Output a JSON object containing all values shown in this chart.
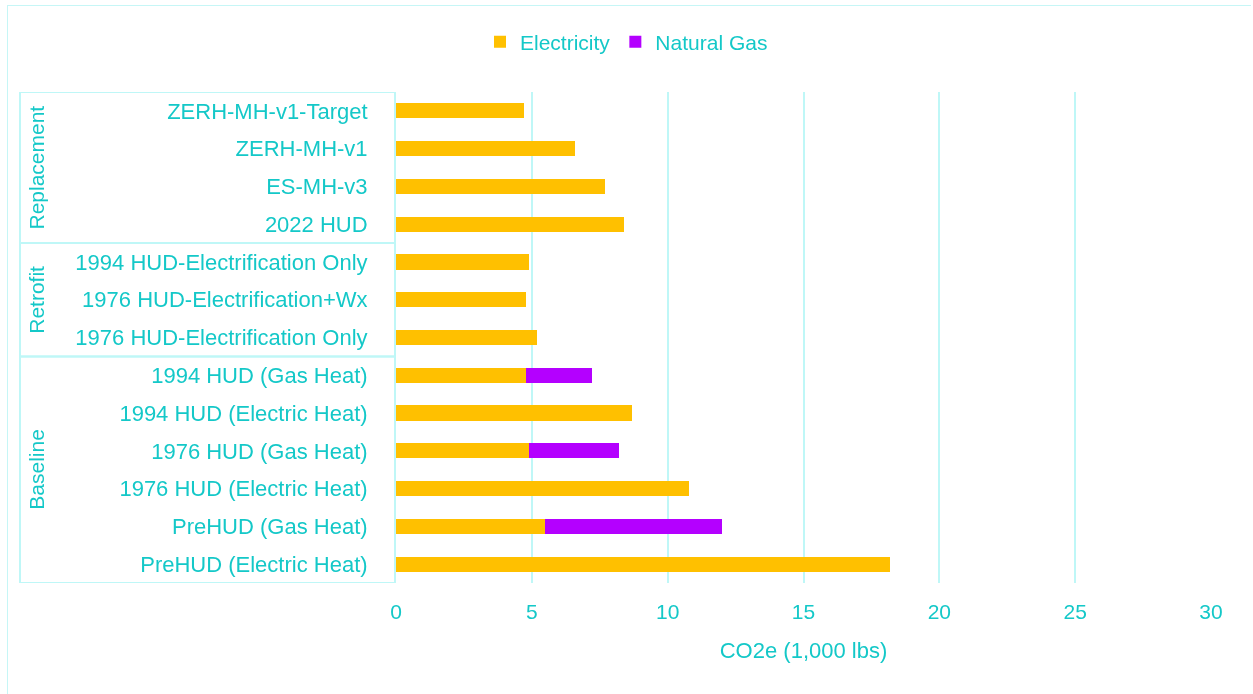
{
  "chart_data": {
    "type": "bar",
    "orientation": "horizontal",
    "stacked": true,
    "categories": [
      "ZERH-MH-v1-Target",
      "ZERH-MH-v1",
      "ES-MH-v3",
      "2022 HUD",
      "1994 HUD-Electrification Only",
      "1976 HUD-Electrification+Wx",
      "1976 HUD-Electrification Only",
      "1994 HUD (Gas Heat)",
      "1994 HUD (Electric Heat)",
      "1976 HUD (Gas Heat)",
      "1976 HUD (Electric Heat)",
      "PreHUD (Gas Heat)",
      "PreHUD (Electric Heat)"
    ],
    "series": [
      {
        "name": "Electricity",
        "color": "#ffc000",
        "values": [
          4.7,
          6.6,
          7.7,
          8.4,
          4.9,
          4.8,
          5.2,
          4.8,
          8.7,
          4.9,
          10.8,
          5.5,
          18.2
        ]
      },
      {
        "name": "Natural Gas",
        "color": "#b400ff",
        "values": [
          null,
          null,
          null,
          null,
          null,
          null,
          null,
          2.4,
          null,
          3.3,
          null,
          6.5,
          null
        ]
      }
    ],
    "xlabel": "CO2e (1,000 lbs)",
    "xlim": [
      0,
      30
    ],
    "xticks": [
      0,
      5,
      10,
      15,
      20,
      25,
      30
    ],
    "grid": "x",
    "legend": "top",
    "annotations": [
      "Replacement",
      "Retrofit",
      "Baseline"
    ]
  }
}
